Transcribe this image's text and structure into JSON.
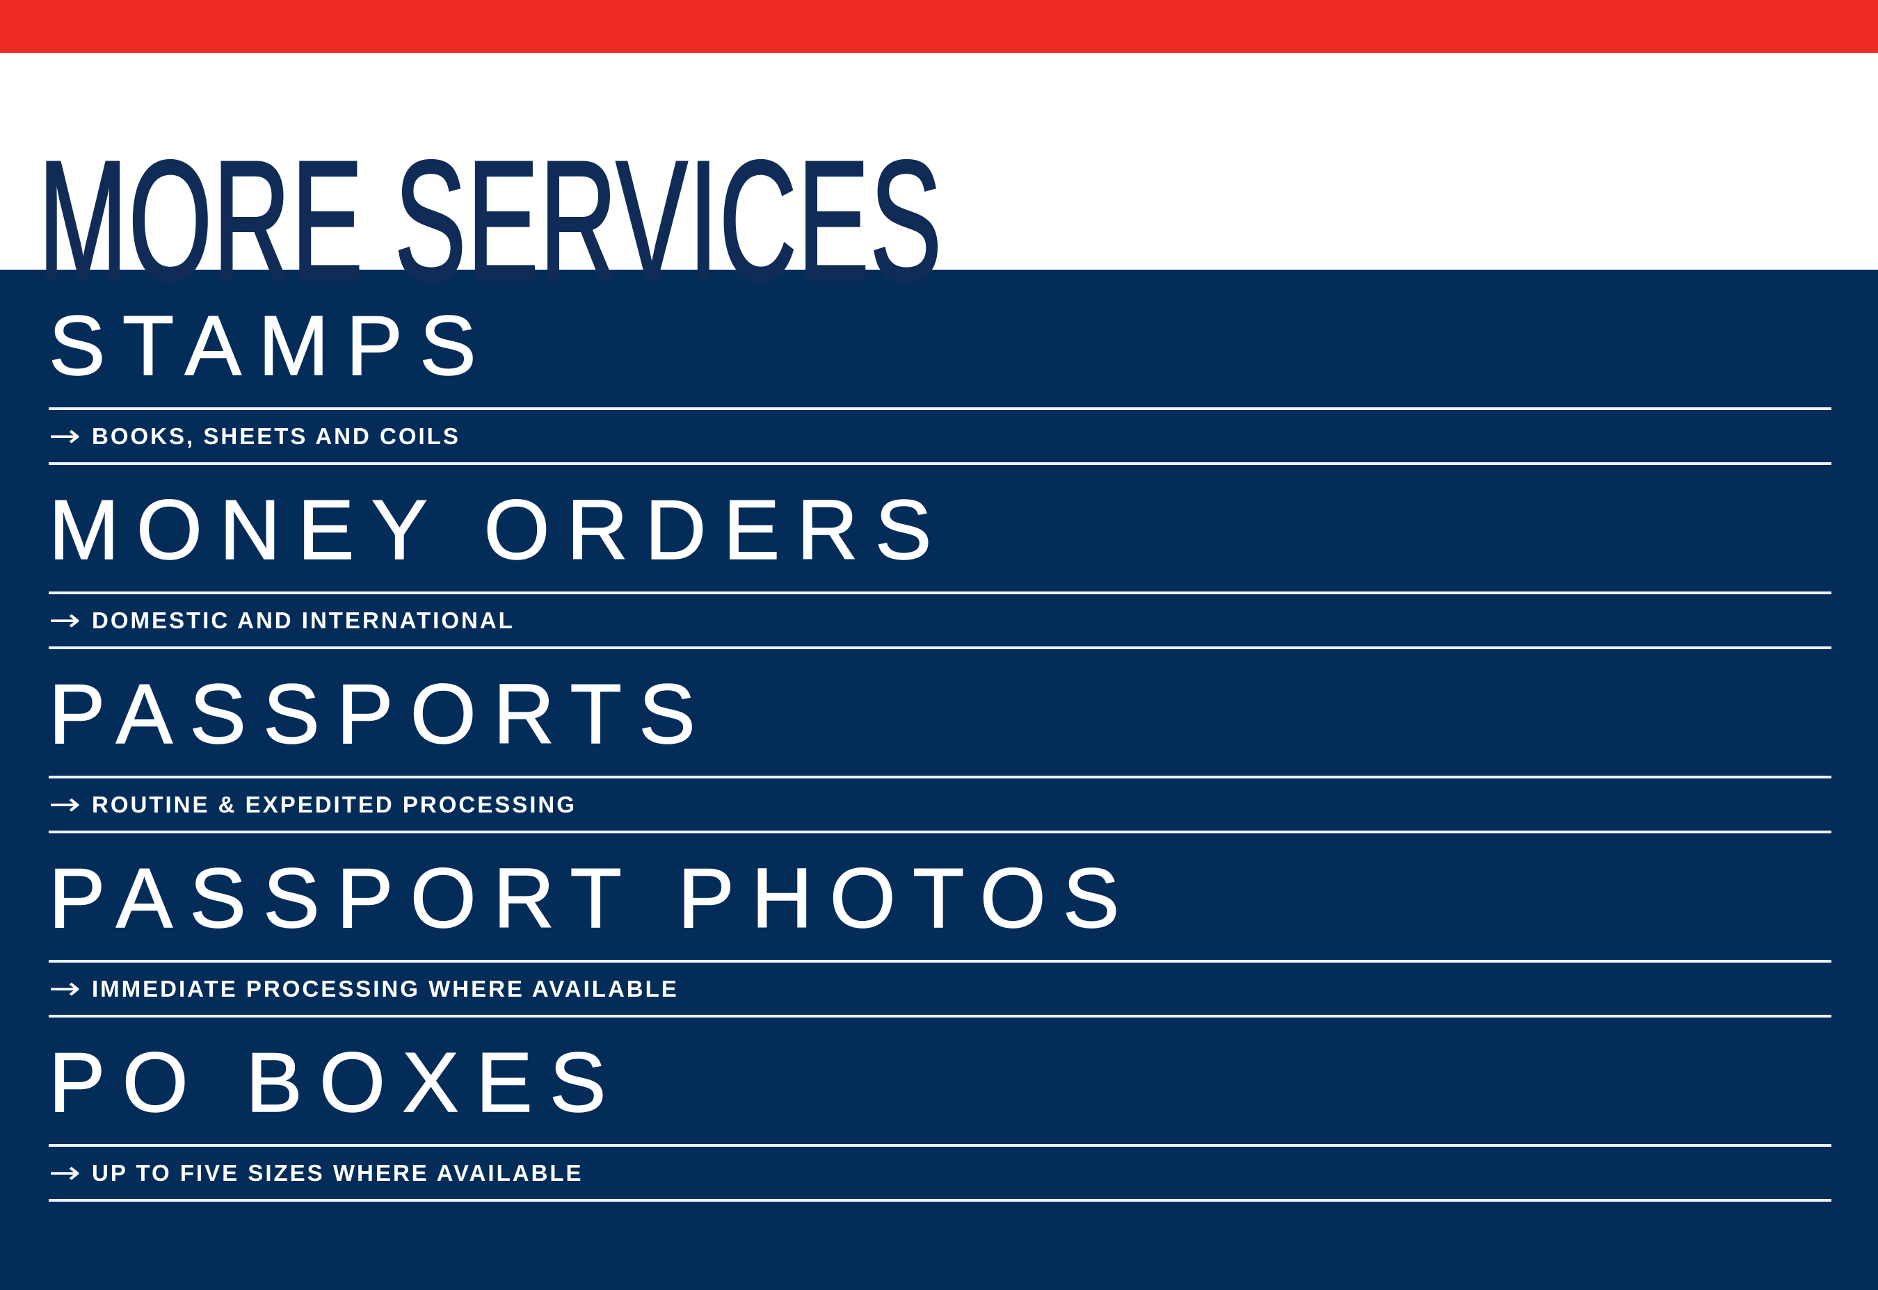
{
  "banner": {
    "title": "MORE SERVICES"
  },
  "services": [
    {
      "heading": "STAMPS",
      "detail": "BOOKS, SHEETS AND COILS"
    },
    {
      "heading": "MONEY ORDERS",
      "detail": "DOMESTIC AND INTERNATIONAL"
    },
    {
      "heading": "PASSPORTS",
      "detail": "ROUTINE & EXPEDITED PROCESSING"
    },
    {
      "heading": "PASSPORT PHOTOS",
      "detail": "IMMEDIATE PROCESSING WHERE AVAILABLE"
    },
    {
      "heading": "PO BOXES",
      "detail": "UP TO FIVE SIZES WHERE AVAILABLE"
    }
  ],
  "icons": {
    "arrow": "→"
  },
  "colors": {
    "top_bar_red": "#ee2c24",
    "panel_navy": "#032c59",
    "title_navy": "#102c56",
    "rule_white": "#eef2f8",
    "text_white": "#ffffff"
  }
}
